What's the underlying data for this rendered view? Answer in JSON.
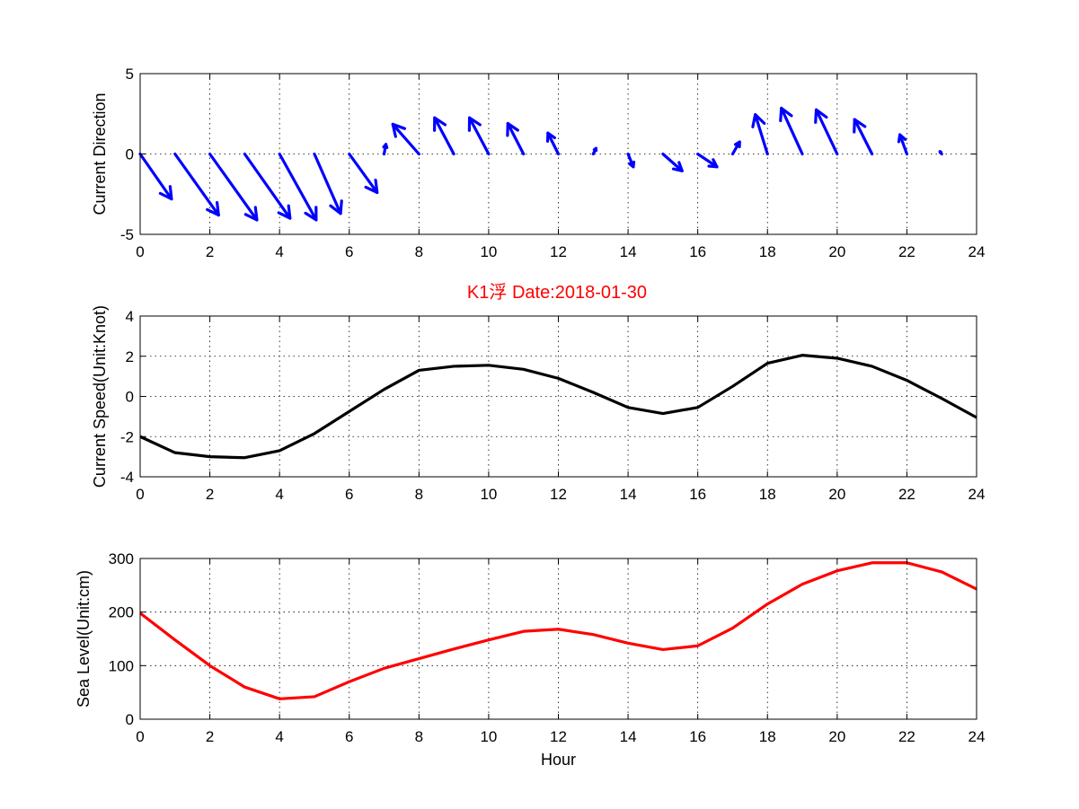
{
  "title": "K1浮    Date:2018-01-30",
  "colors": {
    "direction": "#0000ff",
    "speed": "#000000",
    "sea_level": "#ff0000",
    "title": "#ff0000"
  },
  "chart_data": [
    {
      "type": "quiver",
      "ylabel": "Current Direction",
      "xlim": [
        0,
        24
      ],
      "ylim": [
        -5,
        5
      ],
      "xticks": [
        "0",
        "2",
        "4",
        "6",
        "8",
        "10",
        "12",
        "14",
        "16",
        "18",
        "20",
        "22",
        "24"
      ],
      "yticks": [
        "-5",
        "0",
        "5"
      ],
      "grid": true,
      "series": [
        {
          "x": [
            0,
            1,
            2,
            3,
            4,
            5,
            6,
            7,
            8,
            9,
            10,
            11,
            12,
            13,
            14,
            15,
            16,
            17,
            18,
            19,
            20,
            21,
            22,
            23,
            24
          ],
          "u": [
            0.9,
            1.25,
            1.35,
            1.3,
            1.05,
            0.75,
            0.8,
            0.05,
            -0.75,
            -0.55,
            -0.55,
            -0.45,
            -0.3,
            0.08,
            0.15,
            0.55,
            0.55,
            0.2,
            -0.35,
            -0.6,
            -0.6,
            -0.5,
            -0.2,
            -0.05,
            0.0
          ],
          "v": [
            -2.8,
            -3.8,
            -4.1,
            -4.0,
            -4.1,
            -3.7,
            -2.4,
            0.6,
            1.85,
            2.25,
            2.25,
            1.9,
            1.3,
            0.35,
            -0.8,
            -1.05,
            -0.8,
            0.75,
            2.45,
            2.85,
            2.75,
            2.15,
            1.2,
            0.15,
            0.0
          ]
        }
      ]
    },
    {
      "type": "line",
      "ylabel": "Current Speed(Unit:Knot)",
      "xlim": [
        0,
        24
      ],
      "ylim": [
        -4,
        4
      ],
      "xticks": [
        "0",
        "2",
        "4",
        "6",
        "8",
        "10",
        "12",
        "14",
        "16",
        "18",
        "20",
        "22",
        "24"
      ],
      "yticks": [
        "-4",
        "-2",
        "0",
        "2",
        "4"
      ],
      "grid": true,
      "series": [
        {
          "x": [
            0,
            1,
            2,
            3,
            4,
            5,
            6,
            7,
            8,
            9,
            10,
            11,
            12,
            13,
            14,
            15,
            16,
            17,
            18,
            19,
            20,
            21,
            22,
            23,
            24
          ],
          "values": [
            -2.0,
            -2.8,
            -3.0,
            -3.05,
            -2.7,
            -1.85,
            -0.75,
            0.35,
            1.3,
            1.5,
            1.55,
            1.35,
            0.9,
            0.2,
            -0.55,
            -0.85,
            -0.55,
            0.5,
            1.65,
            2.05,
            1.9,
            1.5,
            0.8,
            -0.1,
            -1.05
          ]
        }
      ]
    },
    {
      "type": "line",
      "xlabel": "Hour",
      "ylabel": "Sea Level(Unit:cm)",
      "xlim": [
        0,
        24
      ],
      "ylim": [
        0,
        300
      ],
      "xticks": [
        "0",
        "2",
        "4",
        "6",
        "8",
        "10",
        "12",
        "14",
        "16",
        "18",
        "20",
        "22",
        "24"
      ],
      "yticks": [
        "0",
        "100",
        "200",
        "300"
      ],
      "grid": true,
      "series": [
        {
          "x": [
            0,
            1,
            2,
            3,
            4,
            5,
            6,
            7,
            8,
            9,
            10,
            11,
            12,
            13,
            14,
            15,
            16,
            17,
            18,
            19,
            20,
            21,
            22,
            23,
            24
          ],
          "values": [
            198,
            148,
            100,
            60,
            38,
            42,
            70,
            95,
            113,
            131,
            148,
            164,
            168,
            158,
            142,
            130,
            137,
            170,
            215,
            252,
            277,
            292,
            292,
            275,
            243
          ]
        }
      ]
    }
  ]
}
